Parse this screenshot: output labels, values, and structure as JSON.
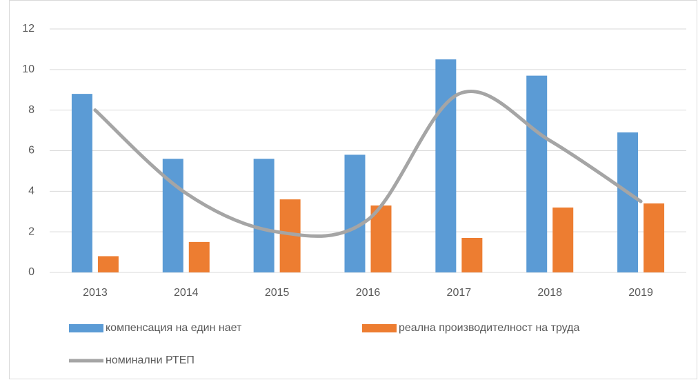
{
  "chart_data": {
    "type": "bar_line",
    "categories": [
      "2013",
      "2014",
      "2015",
      "2016",
      "2017",
      "2018",
      "2019"
    ],
    "series": [
      {
        "name": "компенсация на един нает",
        "color": "#5b9bd5",
        "type": "bar",
        "values": [
          8.8,
          5.6,
          5.6,
          5.8,
          10.5,
          9.7,
          6.9
        ]
      },
      {
        "name": "реална производителност на труда",
        "color": "#ed7d31",
        "type": "bar",
        "values": [
          0.8,
          1.5,
          3.6,
          3.3,
          1.7,
          3.2,
          3.4
        ]
      },
      {
        "name": "номинални РТЕП",
        "color": "#a5a5a5",
        "type": "line",
        "smooth": true,
        "values": [
          8.0,
          3.9,
          2.0,
          2.6,
          8.8,
          6.5,
          3.5
        ]
      }
    ],
    "ylim": [
      0,
      12
    ],
    "yticks": [
      0,
      2,
      4,
      6,
      8,
      10,
      12
    ],
    "grid": true
  }
}
